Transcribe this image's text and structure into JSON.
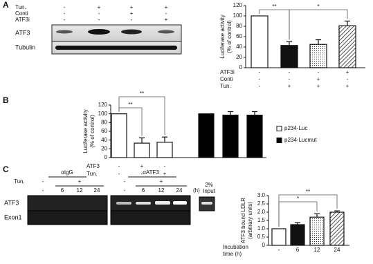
{
  "figure": {
    "panel_labels": [
      "A",
      "B",
      "C"
    ],
    "blot": {
      "conditions": [
        {
          "name": "Tun.",
          "signs": [
            "-",
            "+",
            "+",
            "+"
          ]
        },
        {
          "name": "Conti",
          "signs": [
            "-",
            "-",
            "+",
            "-"
          ]
        },
        {
          "name": "ATF3i",
          "signs": [
            "-",
            "-",
            "-",
            "+"
          ]
        }
      ],
      "rows": [
        "ATF3",
        "Tubulin"
      ]
    },
    "gel": {
      "antibodies": [
        "αIgG",
        "αATF3"
      ],
      "tun_label": "Tun.",
      "tun_signs": [
        "-",
        "+"
      ],
      "lanes": [
        "-",
        "6",
        "12",
        "24"
      ],
      "unit": "(h)",
      "input": [
        "2%",
        "Input"
      ],
      "rows": [
        "ATF3",
        "Exon1"
      ]
    }
  },
  "chart_data": [
    {
      "type": "bar",
      "ylabel": [
        "Luciferase activity",
        "(% of control)"
      ],
      "ylim": [
        0,
        120
      ],
      "yticks": [
        0,
        20,
        40,
        60,
        80,
        100,
        120
      ],
      "series": [
        {
          "values": [
            100,
            43,
            45,
            81
          ],
          "errors": [
            null,
            7,
            9,
            9
          ],
          "fills": [
            "white",
            "black",
            "dotted",
            "hatched"
          ]
        }
      ],
      "conditions": [
        {
          "name": "ATF3i",
          "signs": [
            "-",
            "-",
            "-",
            "+"
          ]
        },
        {
          "name": "Conti",
          "signs": [
            "-",
            "-",
            "+",
            "-"
          ]
        },
        {
          "name": "Tun.",
          "signs": [
            "-",
            "+",
            "+",
            "+"
          ]
        }
      ],
      "brackets": [
        {
          "from": 0,
          "to": 1,
          "label": "**"
        },
        {
          "from": 1,
          "to": 3,
          "label": "*"
        }
      ]
    },
    {
      "type": "bar",
      "ylabel": [
        "Luciferase activity",
        "(% of control)"
      ],
      "ylim": [
        0,
        120
      ],
      "yticks": [
        0,
        20,
        40,
        60,
        80,
        100,
        120
      ],
      "series": [
        {
          "name": "p234-Luc",
          "color": "#ffffff",
          "values": [
            100,
            33,
            35
          ],
          "errors": [
            null,
            12,
            12
          ]
        },
        {
          "name": "p234-Lucmut",
          "color": "#000000",
          "values": [
            100,
            97,
            97
          ],
          "errors": [
            null,
            8,
            8
          ]
        }
      ],
      "conditions": [
        {
          "name": "ATF3",
          "signs": [
            "-",
            "+",
            "-",
            null,
            null,
            null
          ]
        },
        {
          "name": "Tun.",
          "signs": [
            "-",
            "-",
            "+",
            null,
            null,
            null
          ]
        }
      ],
      "brackets": [
        {
          "from": 0,
          "to": 2,
          "label": "**"
        },
        {
          "from": 0,
          "to": 1,
          "label": "**"
        }
      ]
    },
    {
      "type": "bar",
      "ylabel": [
        "ATF3 bound LDLR",
        "(arbitrary units)"
      ],
      "ylim": [
        0,
        3
      ],
      "yticks": [
        0,
        0.5,
        {
          "value": 1,
          "label": "1.0"
        },
        1.5,
        {
          "value": 2,
          "label": "2.0"
        },
        2.5,
        {
          "value": 3,
          "label": "3.0"
        }
      ],
      "xlabel": [
        "Incubation",
        "time (h)"
      ],
      "categories": [
        "-",
        "6",
        "12",
        "24"
      ],
      "series": [
        {
          "values": [
            1.0,
            1.25,
            1.7,
            2.0
          ],
          "errors": [
            null,
            0.12,
            0.2,
            0.08
          ],
          "fills": [
            "white",
            "black",
            "dotted",
            "hatched"
          ]
        }
      ],
      "brackets": [
        {
          "from": 0,
          "to": 2,
          "label": "*"
        },
        {
          "from": 0,
          "to": 3,
          "label": "**"
        }
      ]
    }
  ]
}
